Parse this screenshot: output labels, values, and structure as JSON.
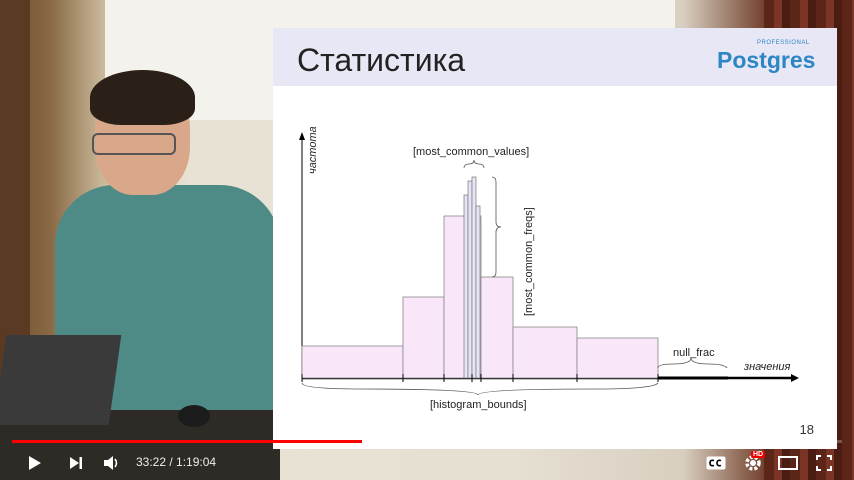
{
  "slide": {
    "title": "Статистика",
    "logo_small": "PROFESSIONAL",
    "logo_main": "Postgres",
    "page_number": "18",
    "labels": {
      "y_axis": "частота",
      "x_axis": "значения",
      "most_common_values": "[most_common_values]",
      "most_common_freqs": "[most_common_freqs]",
      "null_frac": "null_frac",
      "histogram_bounds": "[histogram_bounds]"
    }
  },
  "player": {
    "time_current": "33:22",
    "time_separator": " / ",
    "time_total": "1:19:04",
    "played_fraction": 0.422,
    "buffered_fraction": 0.438,
    "colors": {
      "accent": "#ff0000",
      "hd_badge": "#e00000"
    },
    "icons": [
      "play-icon",
      "next-icon",
      "volume-icon",
      "captions-icon",
      "settings-icon",
      "theater-icon",
      "fullscreen-icon"
    ]
  }
}
